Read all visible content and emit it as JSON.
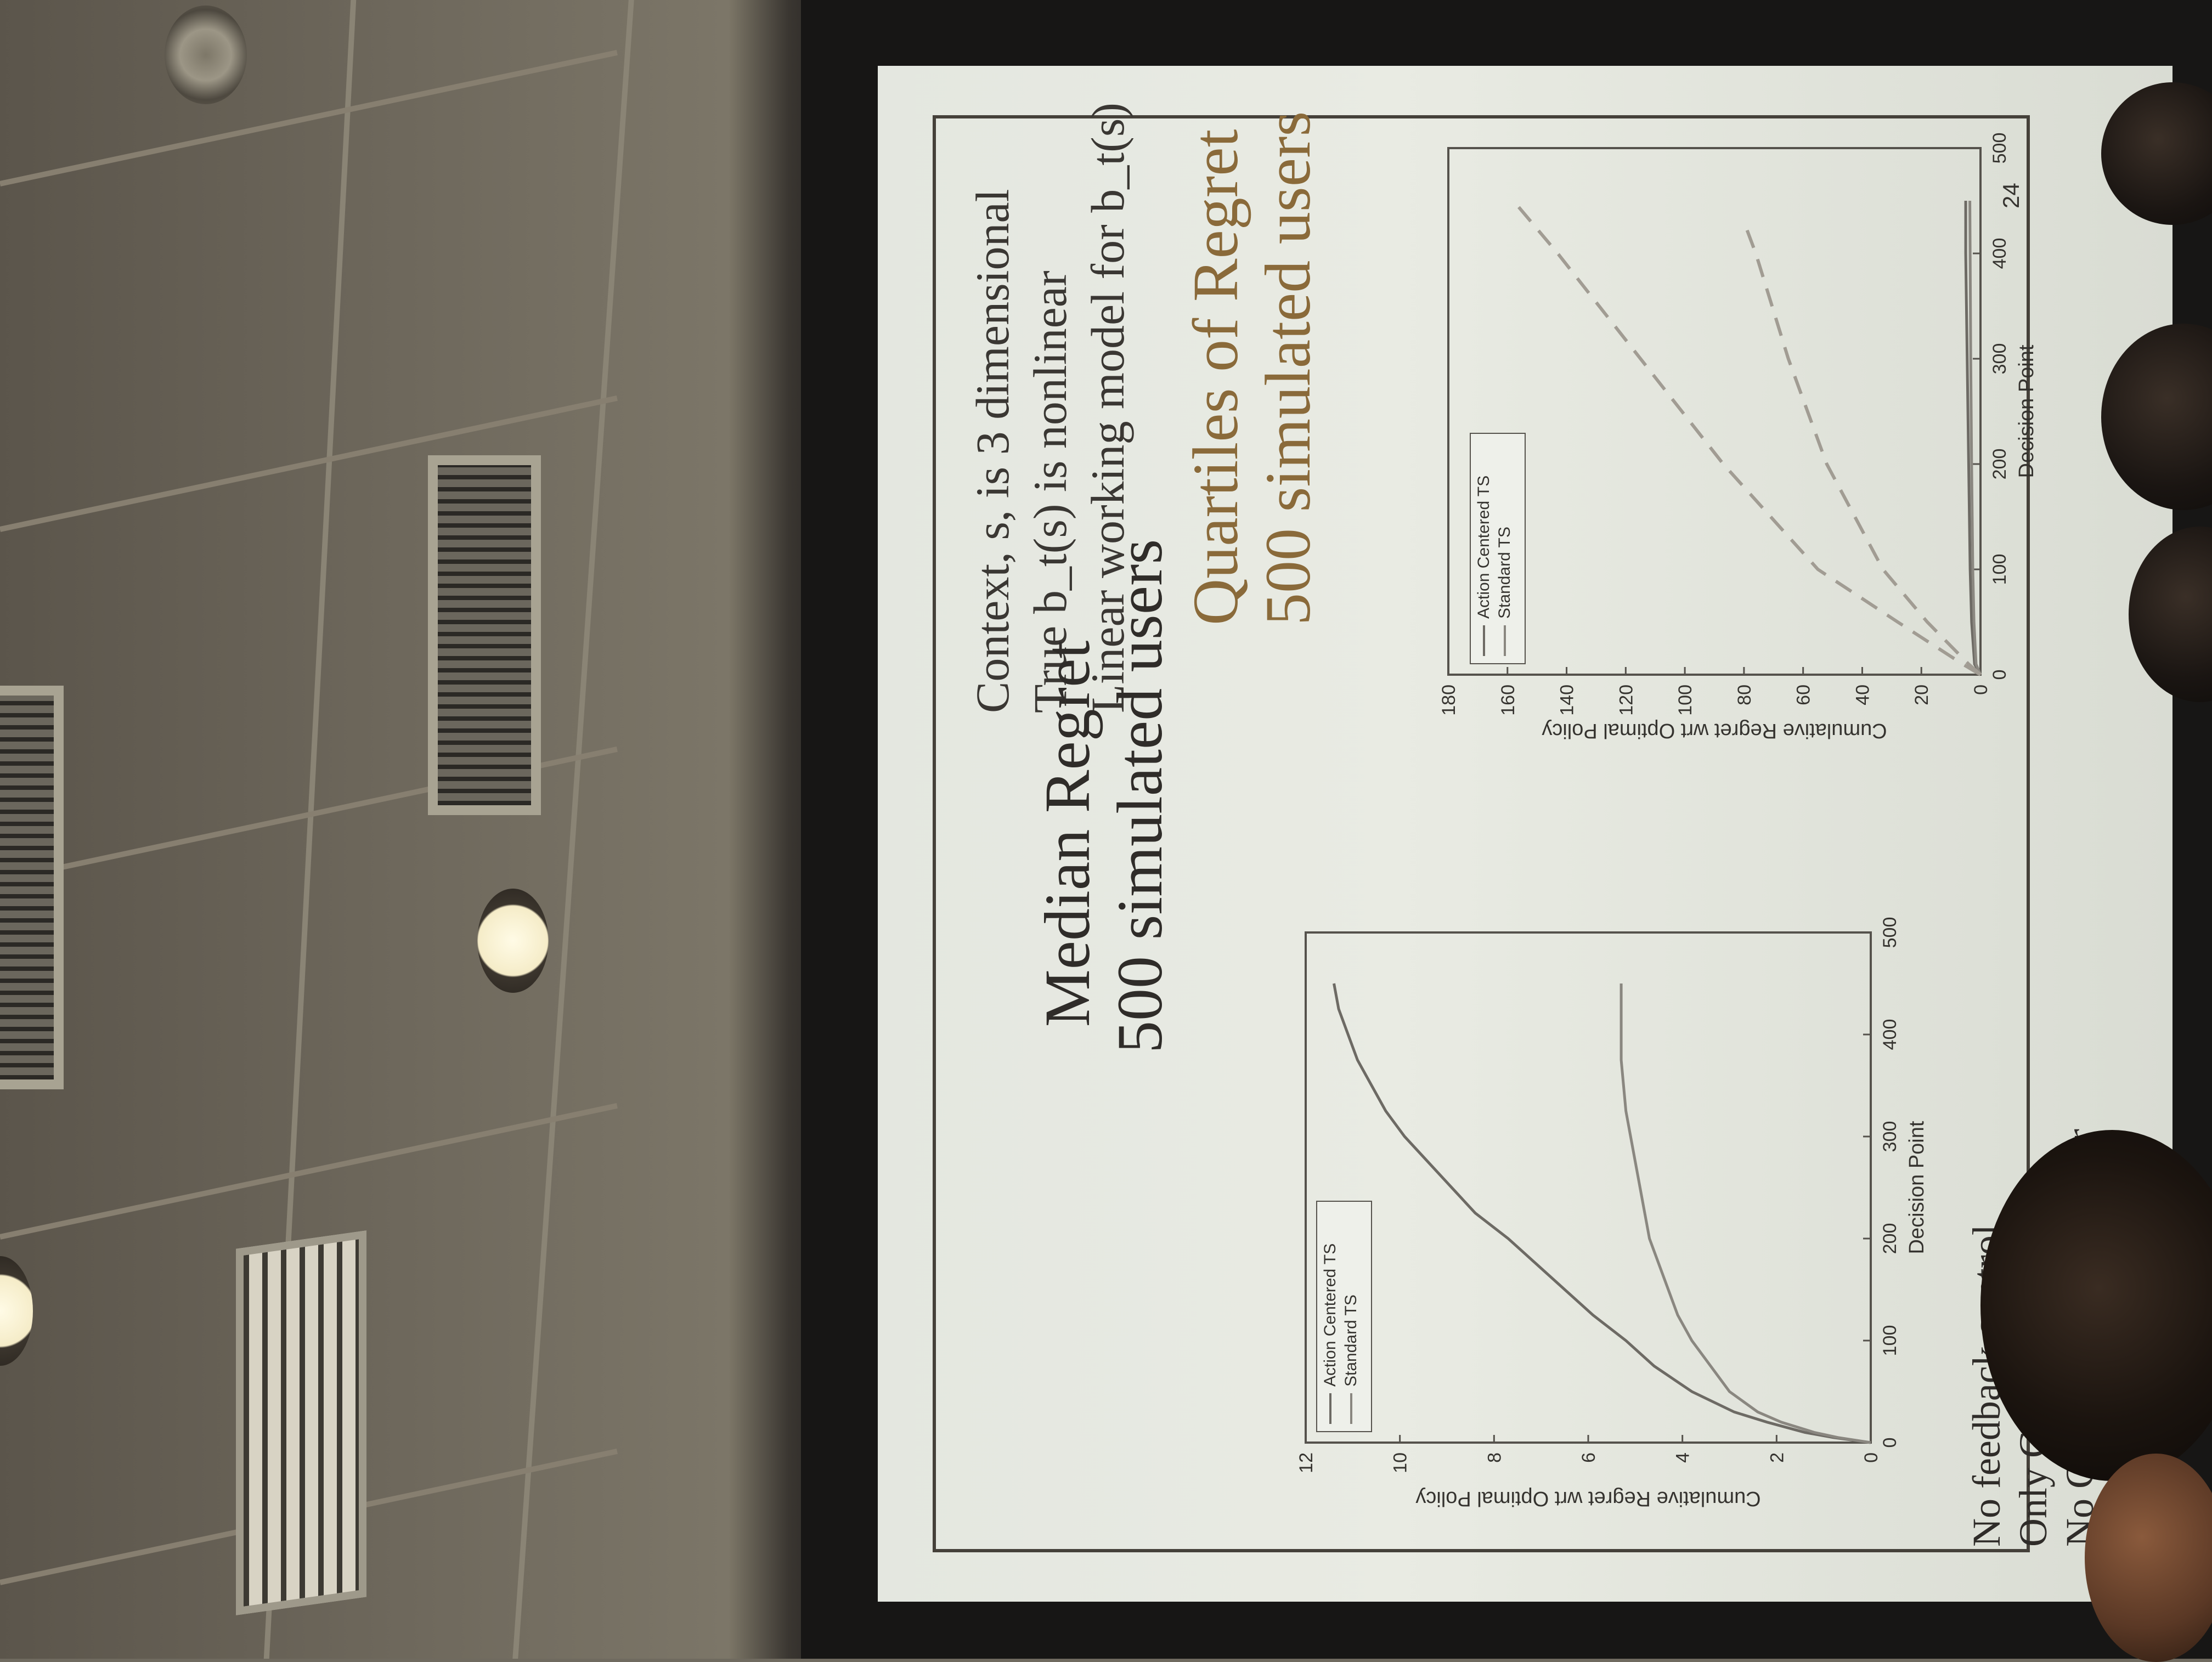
{
  "slide": {
    "context_lines": [
      "Context, s, is 3 dimensional",
      "True b_t(s) is nonlinear",
      "Linear working model for b_t(s)"
    ],
    "left_heading": [
      "Median Regret",
      "500 simulated users"
    ],
    "right_heading": [
      "Quartiles of Regret",
      "500 simulated users"
    ],
    "bullets": [
      "No feedback control",
      "Only Gaussian prior",
      "No Gaussian process prior"
    ],
    "stray_label": "24"
  },
  "colors": {
    "action_centered": "#6d6a64",
    "standard": "#8a8780",
    "quartile_dashed": "#a19c93"
  },
  "chart_data": [
    {
      "type": "line",
      "title": "",
      "xlabel": "Decision Point",
      "ylabel": "Cumulative Regret wrt Optimal Policy",
      "xlim": [
        0,
        500
      ],
      "ylim": [
        0,
        12
      ],
      "xticks": [
        "0",
        "100",
        "200",
        "300",
        "400",
        "500"
      ],
      "yticks": [
        "0",
        "2",
        "4",
        "6",
        "8",
        "10",
        "12"
      ],
      "legend_position": "top-left",
      "series": [
        {
          "name": "Action Centered TS",
          "x": [
            0,
            5,
            10,
            20,
            30,
            50,
            75,
            100,
            125,
            150,
            175,
            200,
            225,
            250,
            275,
            300,
            325,
            350,
            375,
            400,
            425,
            450
          ],
          "y": [
            0,
            0.8,
            1.4,
            2.2,
            2.9,
            3.8,
            4.6,
            5.2,
            5.9,
            6.5,
            7.1,
            7.7,
            8.4,
            8.9,
            9.4,
            9.9,
            10.3,
            10.6,
            10.9,
            11.1,
            11.3,
            11.4
          ]
        },
        {
          "name": "Standard TS",
          "x": [
            0,
            5,
            10,
            20,
            30,
            50,
            75,
            100,
            125,
            150,
            175,
            200,
            225,
            250,
            275,
            300,
            325,
            350,
            375,
            400,
            425,
            450
          ],
          "y": [
            0,
            0.7,
            1.2,
            1.9,
            2.4,
            3.0,
            3.4,
            3.8,
            4.1,
            4.3,
            4.5,
            4.7,
            4.8,
            4.9,
            5.0,
            5.1,
            5.2,
            5.25,
            5.3,
            5.3,
            5.3,
            5.3
          ]
        }
      ]
    },
    {
      "type": "line",
      "title": "",
      "xlabel": "Decision Point",
      "ylabel": "Cumulative Regret wrt Optimal Policy",
      "xlim": [
        0,
        500
      ],
      "ylim": [
        0,
        180
      ],
      "xticks": [
        "0",
        "100",
        "200",
        "300",
        "400",
        "500"
      ],
      "yticks": [
        "0",
        "20",
        "40",
        "60",
        "80",
        "100",
        "120",
        "140",
        "160",
        "180"
      ],
      "legend_position": "top-left",
      "series": [
        {
          "name": "Action Centered TS",
          "x": [
            0,
            10,
            50,
            100,
            200,
            300,
            400,
            450
          ],
          "y": [
            0,
            2,
            3,
            3.5,
            4,
            4.5,
            5,
            5
          ]
        },
        {
          "name": "Standard TS",
          "x": [
            0,
            10,
            50,
            100,
            200,
            300,
            400,
            450
          ],
          "y": [
            0,
            1.5,
            2.2,
            2.6,
            3,
            3.3,
            3.5,
            3.6
          ]
        },
        {
          "name": "",
          "style": "dashed",
          "x": [
            0,
            10,
            50,
            100,
            200,
            300,
            400,
            450
          ],
          "y": [
            0,
            6,
            28,
            55,
            87,
            115,
            143,
            158
          ]
        },
        {
          "name": "",
          "style": "dashed",
          "x": [
            0,
            10,
            50,
            100,
            200,
            300,
            400,
            430
          ],
          "y": [
            0,
            4,
            18,
            33,
            52,
            65,
            76,
            80
          ]
        }
      ]
    }
  ]
}
